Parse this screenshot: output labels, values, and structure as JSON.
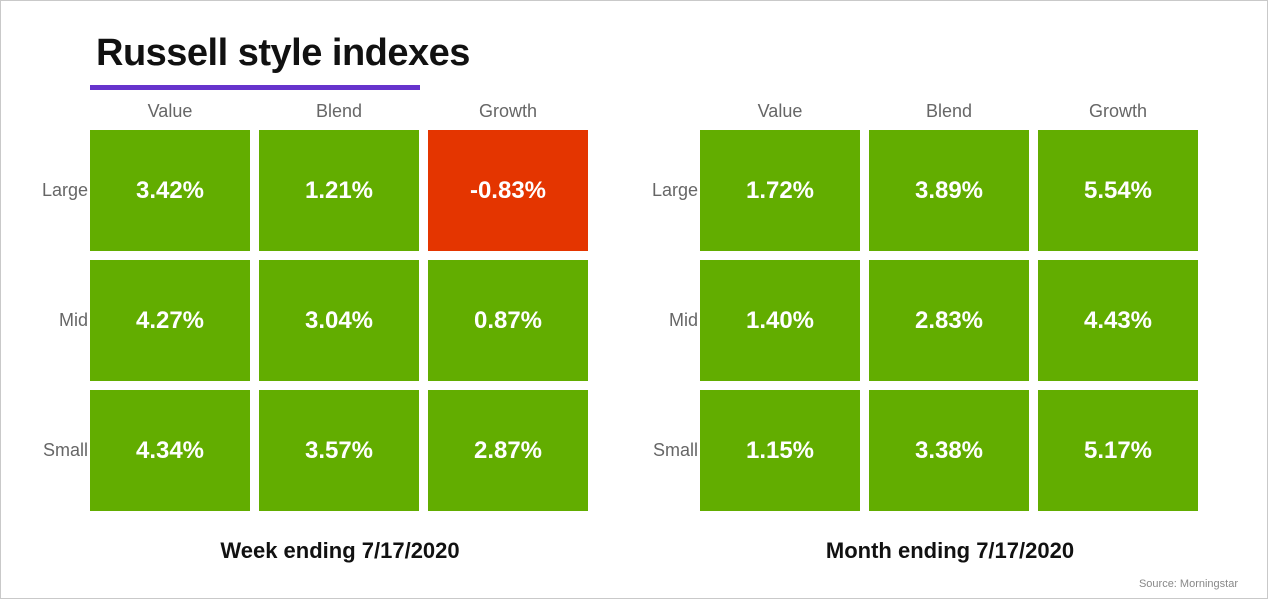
{
  "title": "Russell style indexes",
  "accent_color": "#6633cc",
  "colors": {
    "positive": "#62ad00",
    "negative": "#e43500"
  },
  "source": "Source: Morningstar",
  "chart_data": [
    {
      "type": "heatmap",
      "caption": "Week ending 7/17/2020",
      "columns": [
        "Value",
        "Blend",
        "Growth"
      ],
      "rows": [
        "Large",
        "Mid",
        "Small"
      ],
      "values": [
        [
          "3.42%",
          "1.21%",
          "-0.83%"
        ],
        [
          "4.27%",
          "3.04%",
          "0.87%"
        ],
        [
          "4.34%",
          "3.57%",
          "2.87%"
        ]
      ]
    },
    {
      "type": "heatmap",
      "caption": "Month ending 7/17/2020",
      "columns": [
        "Value",
        "Blend",
        "Growth"
      ],
      "rows": [
        "Large",
        "Mid",
        "Small"
      ],
      "values": [
        [
          "1.72%",
          "3.89%",
          "5.54%"
        ],
        [
          "1.40%",
          "2.83%",
          "4.43%"
        ],
        [
          "1.15%",
          "3.38%",
          "5.17%"
        ]
      ]
    }
  ]
}
